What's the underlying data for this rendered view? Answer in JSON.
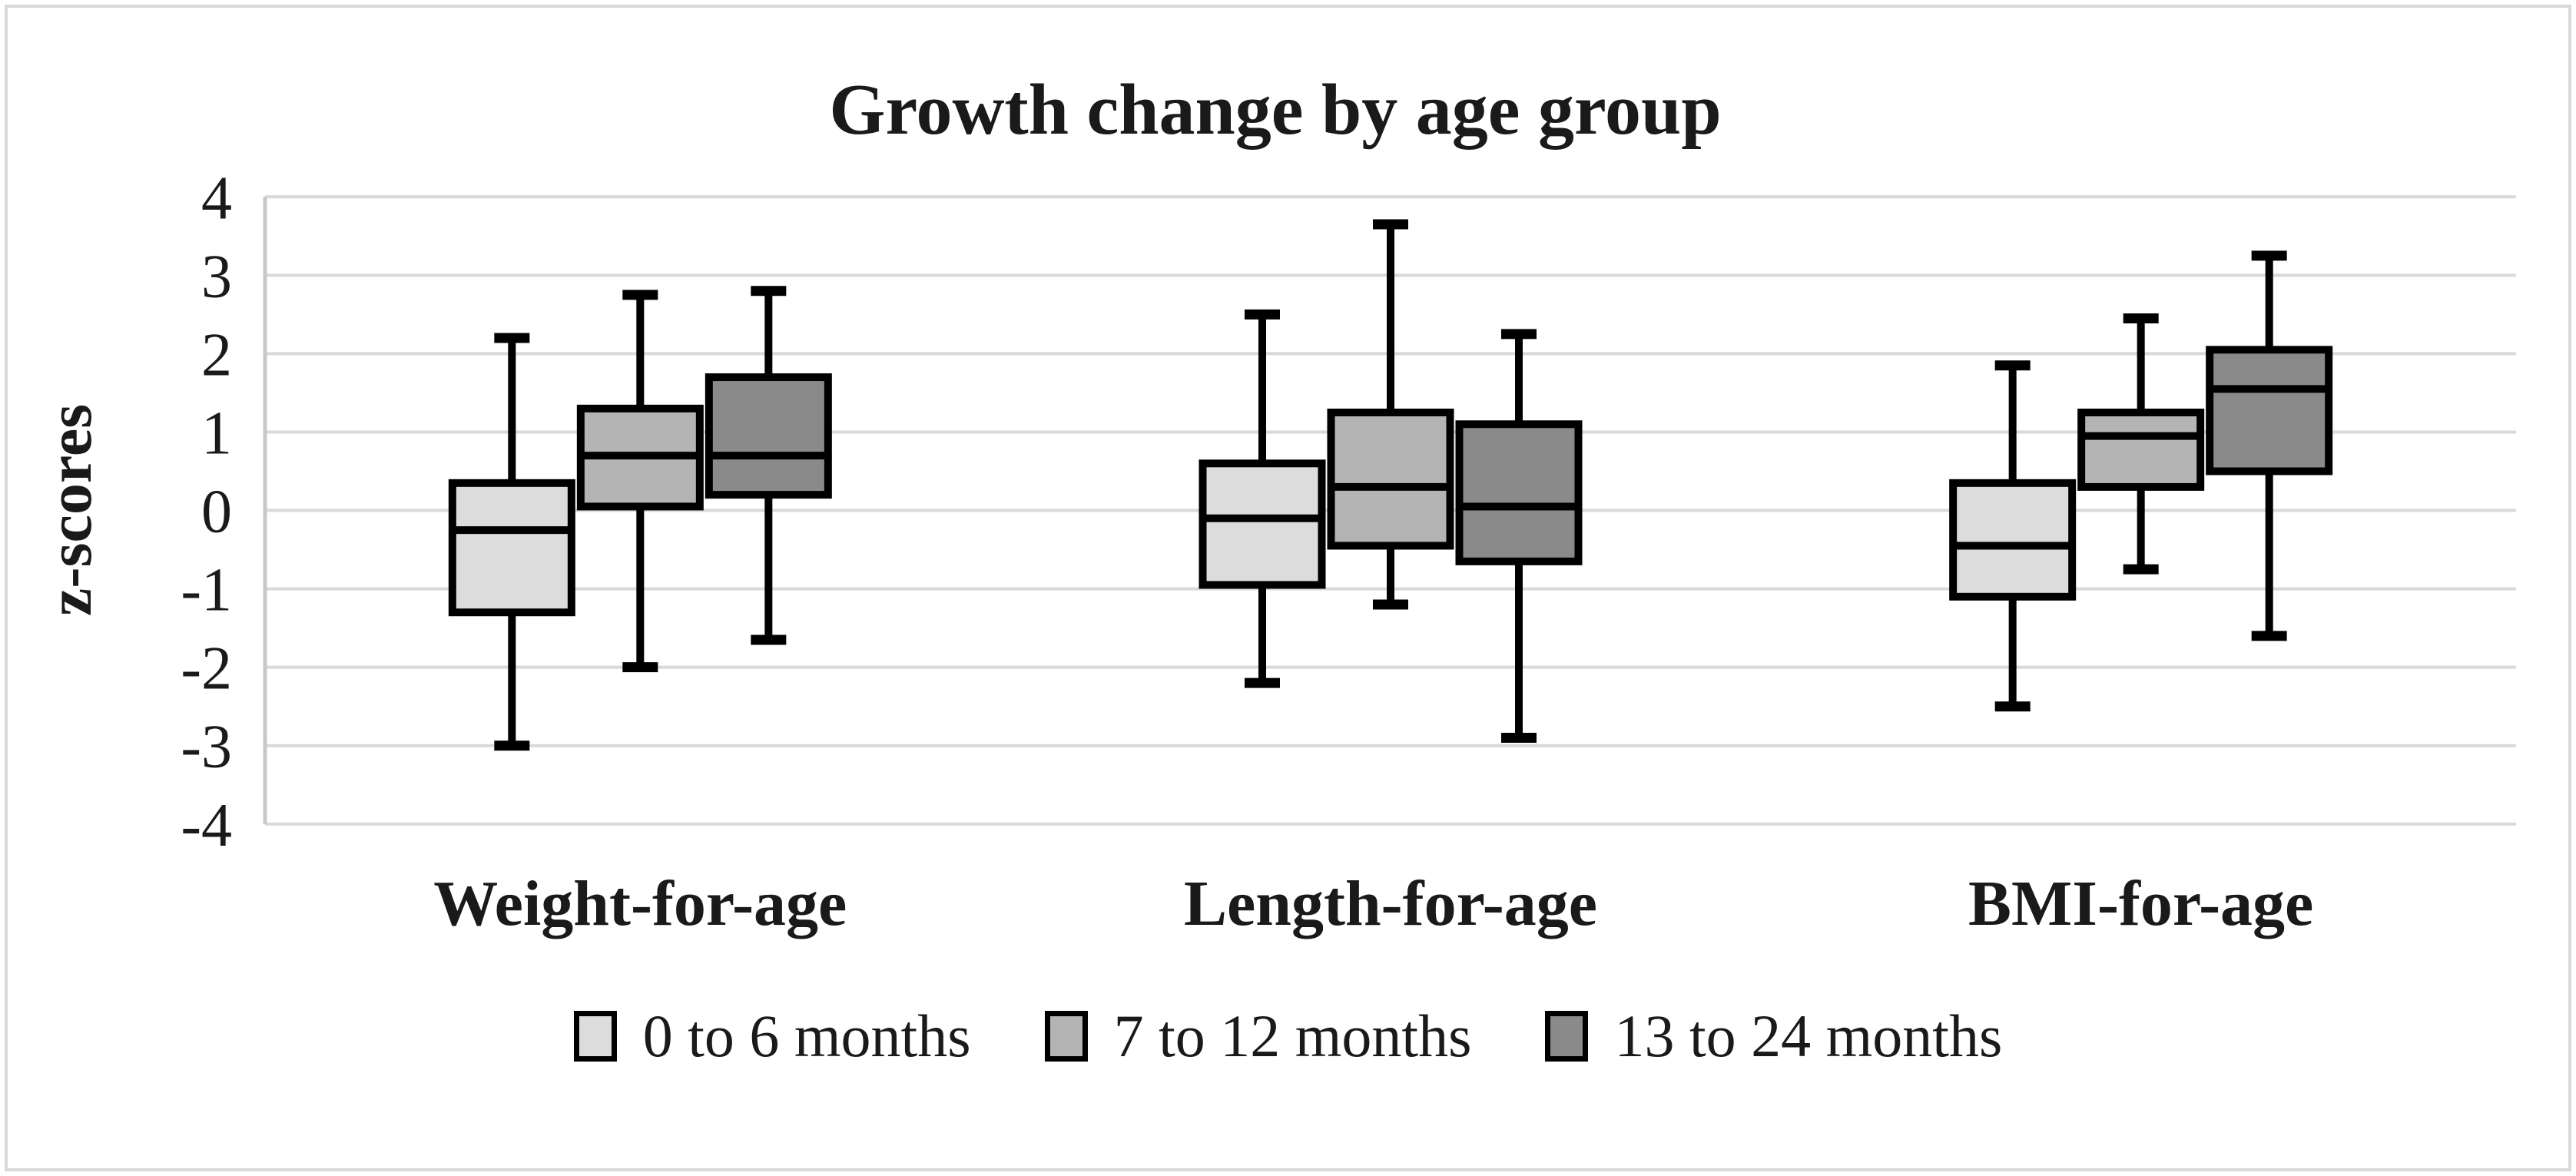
{
  "figure": {
    "background": "#ffffff",
    "border_color": "#d9d9d9"
  },
  "chart_data": {
    "type": "boxplot",
    "title": "Growth change by age group",
    "ylabel": "z-scores",
    "xlabel": "",
    "ylim": [
      -4,
      4
    ],
    "yticks": [
      4,
      3,
      2,
      1,
      0,
      -1,
      -2,
      -3,
      -4
    ],
    "grid": "horizontal-major",
    "gridline_color": "#d9d9d9",
    "axis_line_color": "#c8c8c8",
    "box_outline_color": "#000000",
    "legend_position": "bottom",
    "categories": [
      "Weight-for-age",
      "Length-for-age",
      "BMI-for-age"
    ],
    "series": [
      {
        "name": "0 to 6 months",
        "color": "#dcdcdc",
        "boxes": [
          {
            "whisker_low": -3.0,
            "q1": -1.3,
            "median": -0.25,
            "q3": 0.35,
            "whisker_high": 2.2
          },
          {
            "whisker_low": -2.2,
            "q1": -0.95,
            "median": -0.1,
            "q3": 0.6,
            "whisker_high": 2.5
          },
          {
            "whisker_low": -2.5,
            "q1": -1.1,
            "median": -0.45,
            "q3": 0.35,
            "whisker_high": 1.85
          }
        ]
      },
      {
        "name": "7 to 12 months",
        "color": "#b4b4b4",
        "boxes": [
          {
            "whisker_low": -2.0,
            "q1": 0.05,
            "median": 0.7,
            "q3": 1.3,
            "whisker_high": 2.75
          },
          {
            "whisker_low": -1.2,
            "q1": -0.45,
            "median": 0.3,
            "q3": 1.25,
            "whisker_high": 3.65
          },
          {
            "whisker_low": -0.75,
            "q1": 0.3,
            "median": 0.95,
            "q3": 1.25,
            "whisker_high": 2.45
          }
        ]
      },
      {
        "name": "13 to 24 months",
        "color": "#8a8a8a",
        "boxes": [
          {
            "whisker_low": -1.65,
            "q1": 0.2,
            "median": 0.7,
            "q3": 1.7,
            "whisker_high": 2.8
          },
          {
            "whisker_low": -2.9,
            "q1": -0.65,
            "median": 0.05,
            "q3": 1.1,
            "whisker_high": 2.25
          },
          {
            "whisker_low": -1.6,
            "q1": 0.5,
            "median": 1.55,
            "q3": 2.05,
            "whisker_high": 3.25
          }
        ]
      }
    ]
  }
}
